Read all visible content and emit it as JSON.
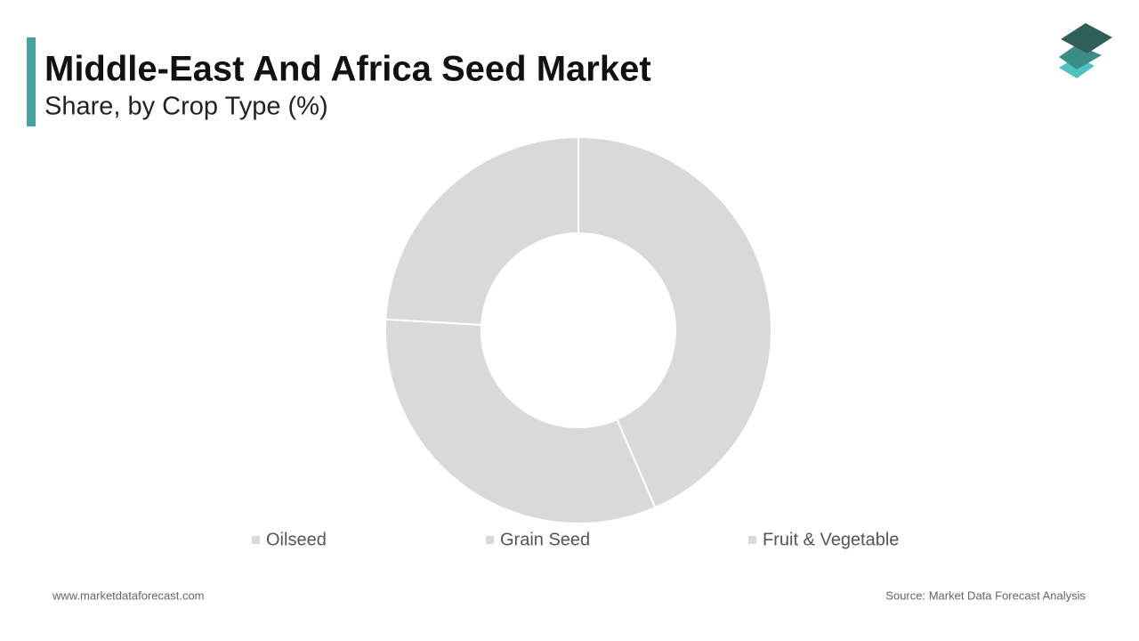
{
  "chart_data": {
    "type": "pie",
    "title": "Middle-East And Africa Seed Market",
    "subtitle": "Share, by Crop Type (%)",
    "categories": [
      "Oilseed",
      "Grain Seed",
      "Fruit & Vegetable"
    ],
    "values": [
      43.5,
      32.4,
      24.1
    ],
    "colors": [
      "#d9d9d9",
      "#d9d9d9",
      "#d9d9d9"
    ],
    "donut": true
  },
  "footer": {
    "website": "www.marketdataforecast.com",
    "source": "Source: Market Data Forecast Analysis"
  }
}
